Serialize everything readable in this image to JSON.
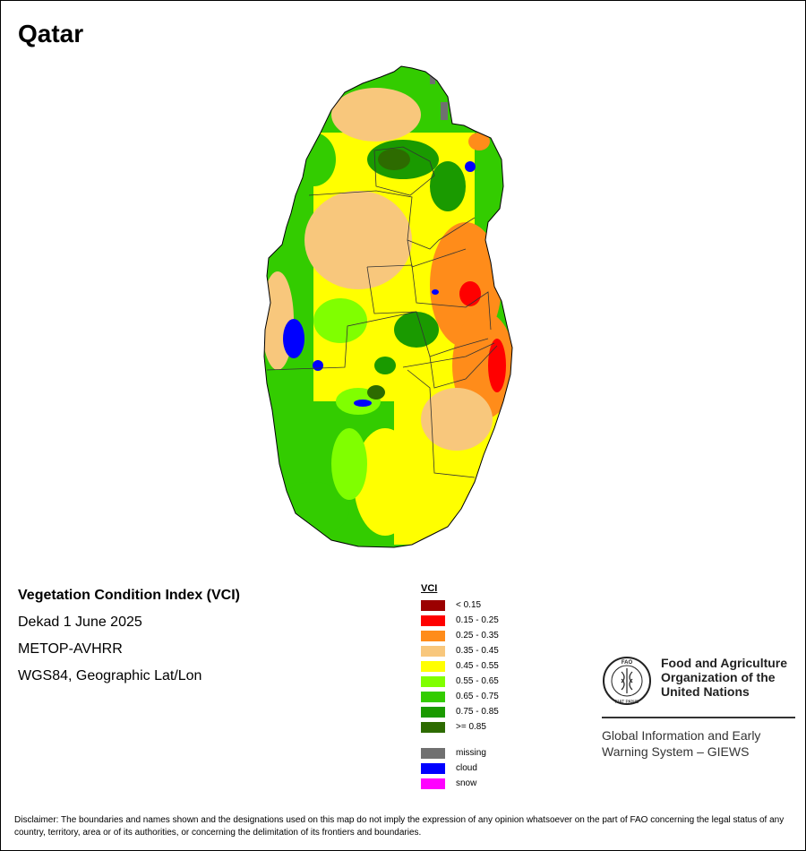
{
  "title": "Qatar",
  "info": {
    "index_title": "Vegetation Condition Index (VCI)",
    "period": "Dekad 1 June 2025",
    "sensor": "METOP-AVHRR",
    "projection": "WGS84, Geographic Lat/Lon"
  },
  "legend": {
    "title": "VCI",
    "classes": [
      {
        "label": "< 0.15",
        "color": "#9b0000"
      },
      {
        "label": "0.15 - 0.25",
        "color": "#ff0000"
      },
      {
        "label": "0.25 - 0.35",
        "color": "#ff8c1a"
      },
      {
        "label": "0.35 - 0.45",
        "color": "#f8c77c"
      },
      {
        "label": "0.45 - 0.55",
        "color": "#ffff00"
      },
      {
        "label": "0.55 - 0.65",
        "color": "#80ff00"
      },
      {
        "label": "0.65 - 0.75",
        "color": "#33cc00"
      },
      {
        "label": "0.75 - 0.85",
        "color": "#1a9a00"
      },
      {
        "label": ">= 0.85",
        "color": "#2d6b00"
      }
    ],
    "other": [
      {
        "label": "missing",
        "color": "#707070"
      },
      {
        "label": "cloud",
        "color": "#0000ff"
      },
      {
        "label": "snow",
        "color": "#ff00ff"
      }
    ]
  },
  "org": {
    "name_lines": [
      "Food and Agriculture",
      "Organization of the",
      "United Nations"
    ],
    "system_lines": [
      "Global Information and Early",
      "Warning System – GIEWS"
    ],
    "logo_text": "FAO",
    "logo_motto": "FIAT PANIS"
  },
  "disclaimer": "Disclaimer: The boundaries and names shown and the designations used on this map do not imply the expression of any opinion whatsoever on the part of FAO concerning the legal status of any country, territory, area or of its authorities, or concerning the delimitation of its frontiers and boundaries."
}
